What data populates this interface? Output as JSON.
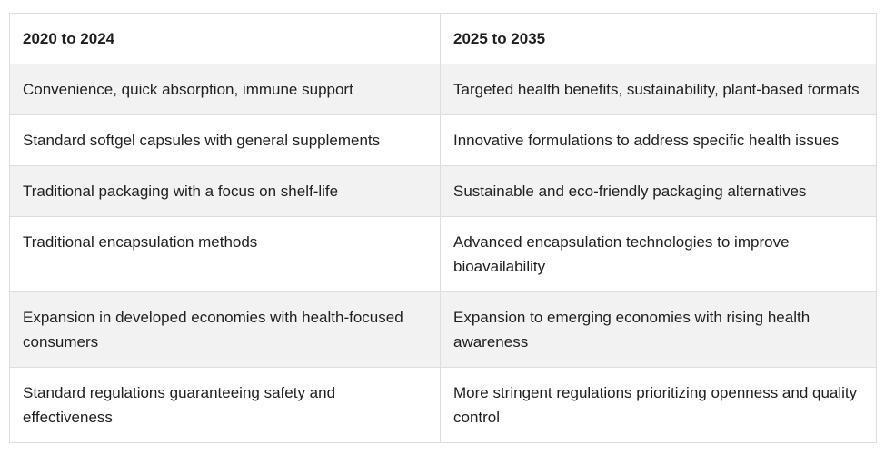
{
  "table": {
    "headers": [
      "2020 to 2024",
      "2025 to 2035"
    ],
    "rows": [
      [
        "Convenience, quick absorption, immune support",
        "Targeted health benefits, sustainability, plant-based formats"
      ],
      [
        "Standard softgel capsules with general supplements",
        "Innovative formulations to address specific health issues"
      ],
      [
        "Traditional packaging with a focus on shelf-life",
        "Sustainable and eco-friendly packaging alternatives"
      ],
      [
        "Traditional encapsulation methods",
        "Advanced encapsulation technologies to improve bioavailability"
      ],
      [
        "Expansion in developed economies with health-focused consumers",
        "Expansion to emerging economies with rising health awareness"
      ],
      [
        "Standard regulations guaranteeing safety and effectiveness",
        "More stringent regulations prioritizing openness and quality control"
      ]
    ]
  },
  "colors": {
    "border": "#dedede",
    "stripe": "#f2f2f2",
    "text": "#1f1f1f"
  }
}
